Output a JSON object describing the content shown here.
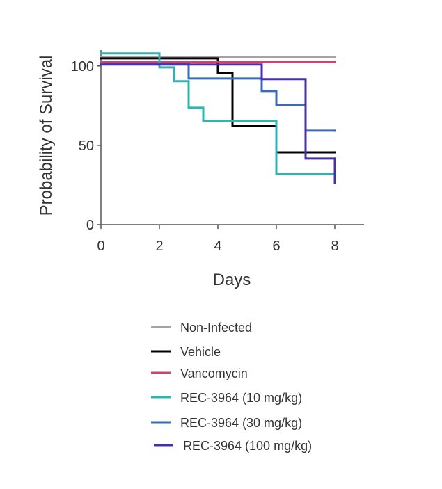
{
  "chart_data": {
    "type": "step",
    "xlabel": "Days",
    "ylabel": "Probability of Survival",
    "xlim": [
      0,
      9
    ],
    "xticks": [
      0,
      2,
      4,
      6,
      8
    ],
    "ylim": [
      0,
      110
    ],
    "yticks": [
      0,
      50,
      100
    ],
    "series": [
      {
        "name": "Non-Infected",
        "color": "#a3a3a6",
        "x": [
          0,
          8
        ],
        "values": [
          105.7,
          105.7
        ]
      },
      {
        "name": "Vehicle",
        "color": "#000000",
        "x": [
          0,
          4,
          4.5,
          6,
          8
        ],
        "values": [
          104.8,
          95.6,
          62.3,
          45.6,
          45.6
        ]
      },
      {
        "name": "Vancomycin",
        "color": "#d6406a",
        "x": [
          0,
          8
        ],
        "values": [
          102.6,
          102.6
        ]
      },
      {
        "name": "REC-3964 (10 mg/kg)",
        "color": "#2bb5b0",
        "x": [
          0,
          2,
          2.5,
          3,
          3.5,
          6,
          8
        ],
        "values": [
          107.9,
          99.1,
          90.4,
          73.7,
          65.4,
          32,
          32
        ]
      },
      {
        "name": "REC-3964 (30 mg/kg)",
        "color": "#3a6bb5",
        "x": [
          0,
          3,
          5.5,
          6,
          7,
          8
        ],
        "values": [
          101.5,
          92.1,
          84.2,
          75.4,
          59.2,
          59.2
        ]
      },
      {
        "name": "REC-3964 (100 mg/kg)",
        "color": "#4b2fa8",
        "x": [
          0,
          5.5,
          7,
          8,
          8
        ],
        "values": [
          100.9,
          91.7,
          41.7,
          41.7,
          26.3
        ]
      }
    ]
  }
}
